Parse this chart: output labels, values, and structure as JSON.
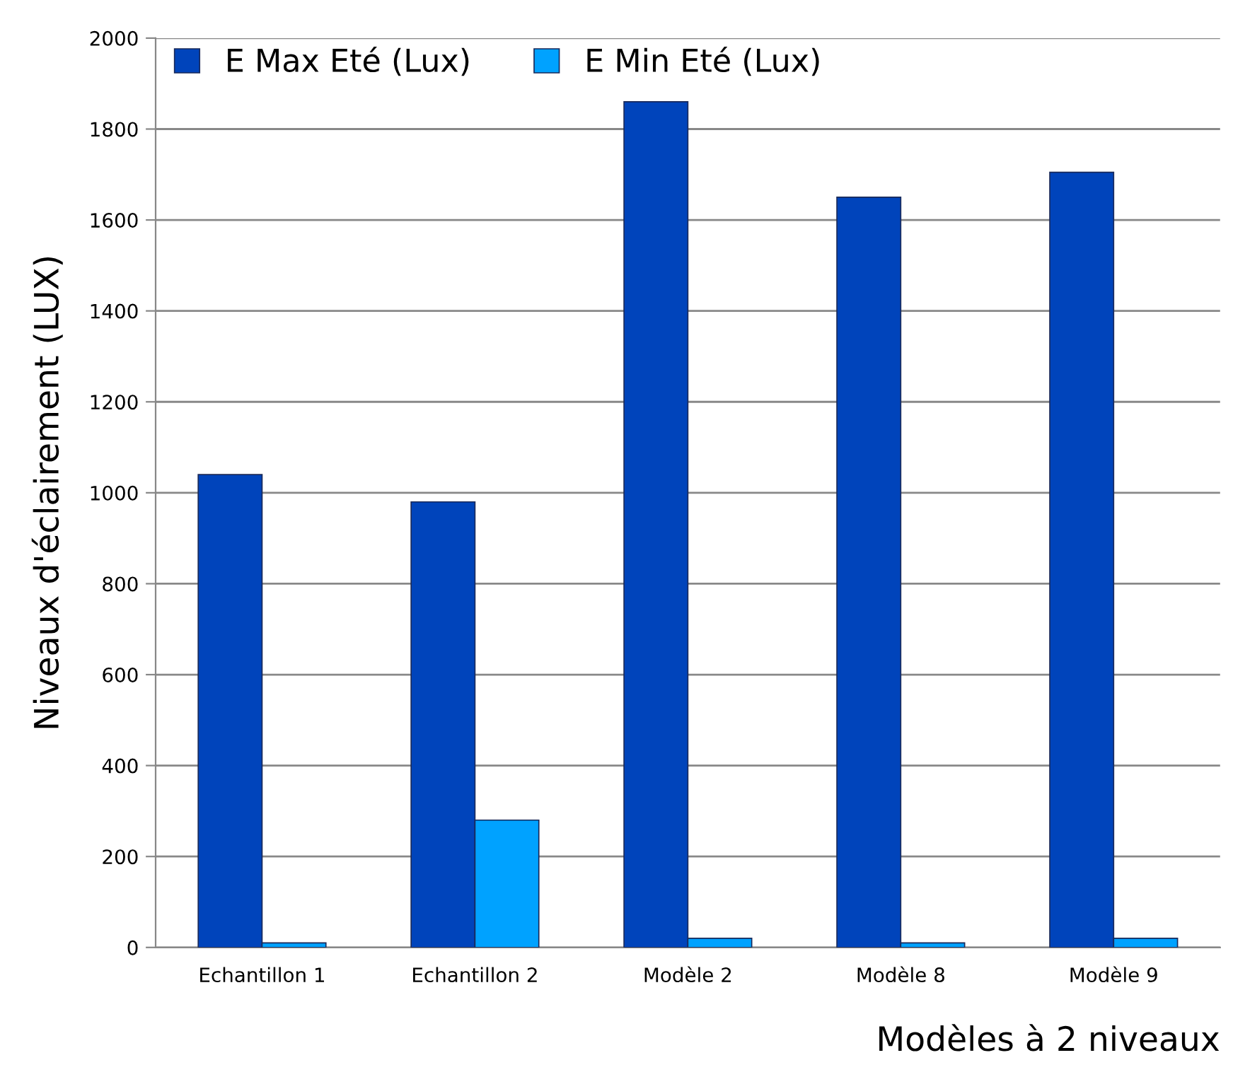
{
  "chart_data": {
    "type": "bar",
    "xlabel": "Modèles à 2 niveaux",
    "ylabel": "Niveaux d'éclairement (LUX)",
    "categories": [
      "Echantillon 1",
      "Echantillon 2",
      "Modèle 2",
      "Modèle 8",
      "Modèle 9"
    ],
    "series": [
      {
        "name": "E Max Eté (Lux)",
        "color": "#0044bb",
        "values": [
          1040,
          980,
          1860,
          1650,
          1705
        ]
      },
      {
        "name": "E Min Eté (Lux)",
        "color": "#00a2ff",
        "values": [
          10,
          280,
          20,
          10,
          20
        ]
      }
    ],
    "ylim": [
      0,
      2000
    ],
    "yticks": [
      0,
      200,
      400,
      600,
      800,
      1000,
      1200,
      1400,
      1600,
      1800,
      2000
    ],
    "grid": "y",
    "legend": "top left"
  }
}
